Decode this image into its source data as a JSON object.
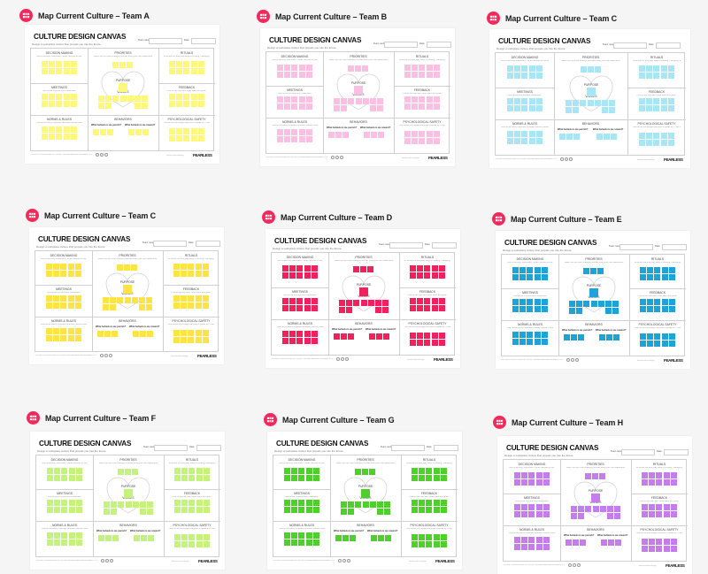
{
  "canvas_template": {
    "title": "CULTURE DESIGN CANVAS",
    "subtitle": "Design a workplace culture that propels you into the future.",
    "team_name_label": "Team name:",
    "date_label": "Date:",
    "sections": {
      "decision_making": {
        "label": "DECISION MAKING",
        "question": "How is authority distributed? What methods do we use to make decisions?"
      },
      "priorities": {
        "label": "PRIORITIES",
        "question": "Select the top three strategic priorities using your own statements"
      },
      "rituals": {
        "label": "RITUALS",
        "question": "What are our everyday ways of working, managing, and celebrating progress?"
      },
      "meetings": {
        "label": "MEETINGS",
        "question": "How do we convene and collaborate?"
      },
      "purpose": {
        "label": "PURPOSE",
        "question": "Why do we exist?"
      },
      "values": {
        "label": "VALUES",
        "question": "What do we believe in?"
      },
      "feedback": {
        "label": "FEEDBACK",
        "question": "How do we help each other learn and grow?"
      },
      "norms_rules": {
        "label": "NORMS & RULES",
        "question": "How do we clarify expected behaviors without hindering autonomy?"
      },
      "behaviors": {
        "label": "BEHAVIORS",
        "punish": "What behaviors we punish?",
        "reward": "What behaviors we reward?"
      },
      "psych_safety": {
        "label": "PSYCHOLOGICAL SAFETY",
        "question": "How do we encourage everyone to speak up? How do we promote participation and handle new perspectives and dissent?"
      }
    },
    "footer_license": "This work is licensed under the Creative Commons Attribution-ShareAlike 4.0 International License.",
    "footer_site": "fearlessculture.design",
    "footer_logo": "FEARLESS"
  },
  "boards": [
    {
      "title": "Map Current Culture – Team A",
      "note_color": "#fdf77a"
    },
    {
      "title": "Map Current Culture – Team B",
      "note_color": "#f9c0e3"
    },
    {
      "title": "Map Current Culture – Team C",
      "note_color": "#a8e6f5"
    },
    {
      "title": "Map Current Culture – Team C",
      "note_color": "#fde343"
    },
    {
      "title": "Map Current Culture – Team D",
      "note_color": "#f2215e"
    },
    {
      "title": "Map Current Culture – Team E",
      "note_color": "#1ea3d9"
    },
    {
      "title": "Map Current Culture – Team F",
      "note_color": "#c5f27a"
    },
    {
      "title": "Map Current Culture – Team G",
      "note_color": "#4fcf2c"
    },
    {
      "title": "Map Current Culture – Team H",
      "note_color": "#c57ded"
    }
  ],
  "frame_icon": "board-frame-icon",
  "frame_icon_color": "#f2295b"
}
